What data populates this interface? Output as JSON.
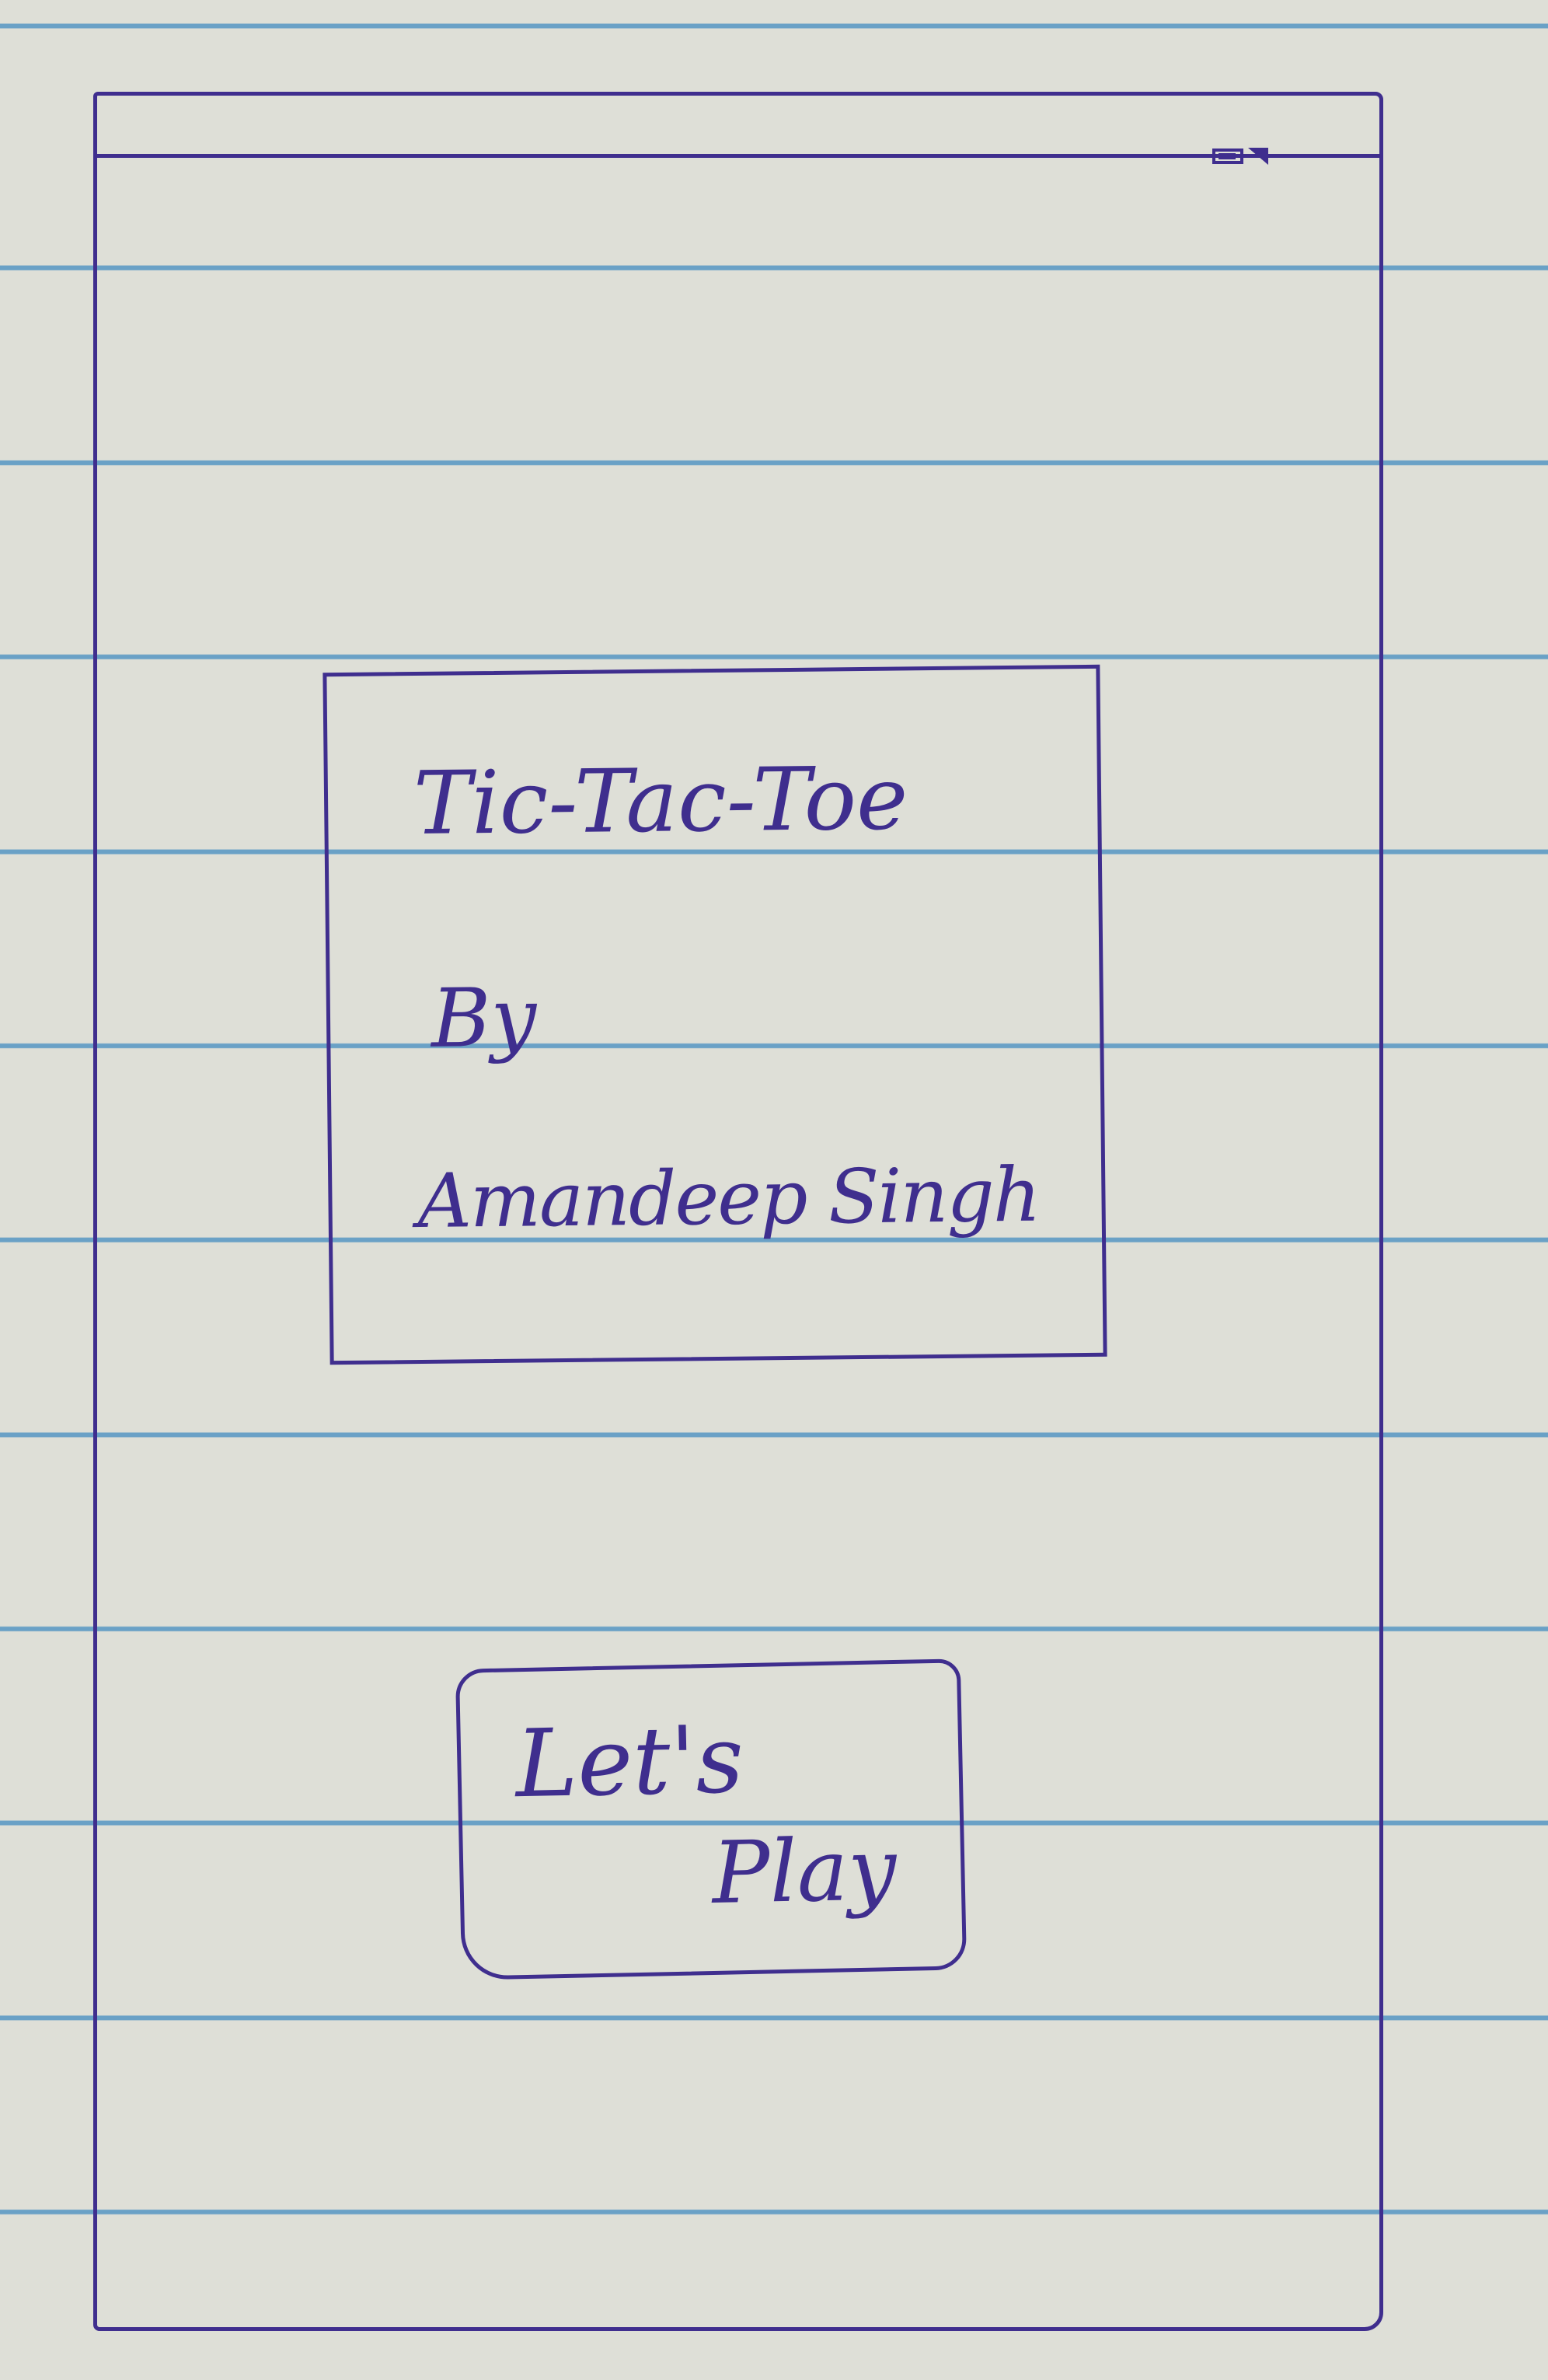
{
  "title_card": {
    "title": "Tic-Tac-Toe",
    "by": "By",
    "author": "Amandeep Singh"
  },
  "play_button": {
    "line1": "Let's",
    "line2": "Play"
  },
  "status_bar": {
    "icons": [
      "battery-icon",
      "signal-icon"
    ]
  },
  "colors": {
    "ink": "#3f2e8e",
    "paper": "#dedfd7",
    "rule_line": "#6aa1c6"
  }
}
